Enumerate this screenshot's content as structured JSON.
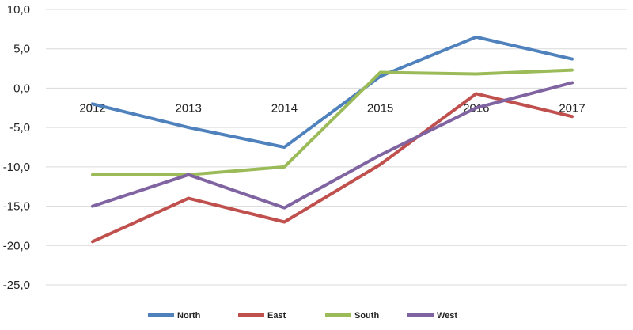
{
  "chart_data": {
    "type": "line",
    "categories": [
      "2012",
      "2013",
      "2014",
      "2015",
      "2016",
      "2017"
    ],
    "series": [
      {
        "name": "North",
        "color": "#4f81bd",
        "values": [
          -2.0,
          -5.0,
          -7.5,
          1.5,
          6.5,
          3.7
        ]
      },
      {
        "name": "East",
        "color": "#c0504d",
        "values": [
          -19.5,
          -14.0,
          -17.0,
          -9.7,
          -0.7,
          -3.6
        ]
      },
      {
        "name": "South",
        "color": "#9bbb59",
        "values": [
          -11.0,
          -11.0,
          -10.0,
          2.0,
          1.8,
          2.3
        ]
      },
      {
        "name": "West",
        "color": "#8064a2",
        "values": [
          -15.0,
          -11.0,
          -15.2,
          -8.5,
          -2.5,
          0.7
        ]
      }
    ],
    "yticks": [
      "10,0",
      "5,0",
      "0,0",
      "-5,0",
      "-10,0",
      "-15,0",
      "-20,0",
      "-25,0"
    ],
    "ylim": [
      -25,
      10
    ],
    "grid": true,
    "legend": "bottom",
    "title": "",
    "xlabel": "",
    "ylabel": ""
  }
}
